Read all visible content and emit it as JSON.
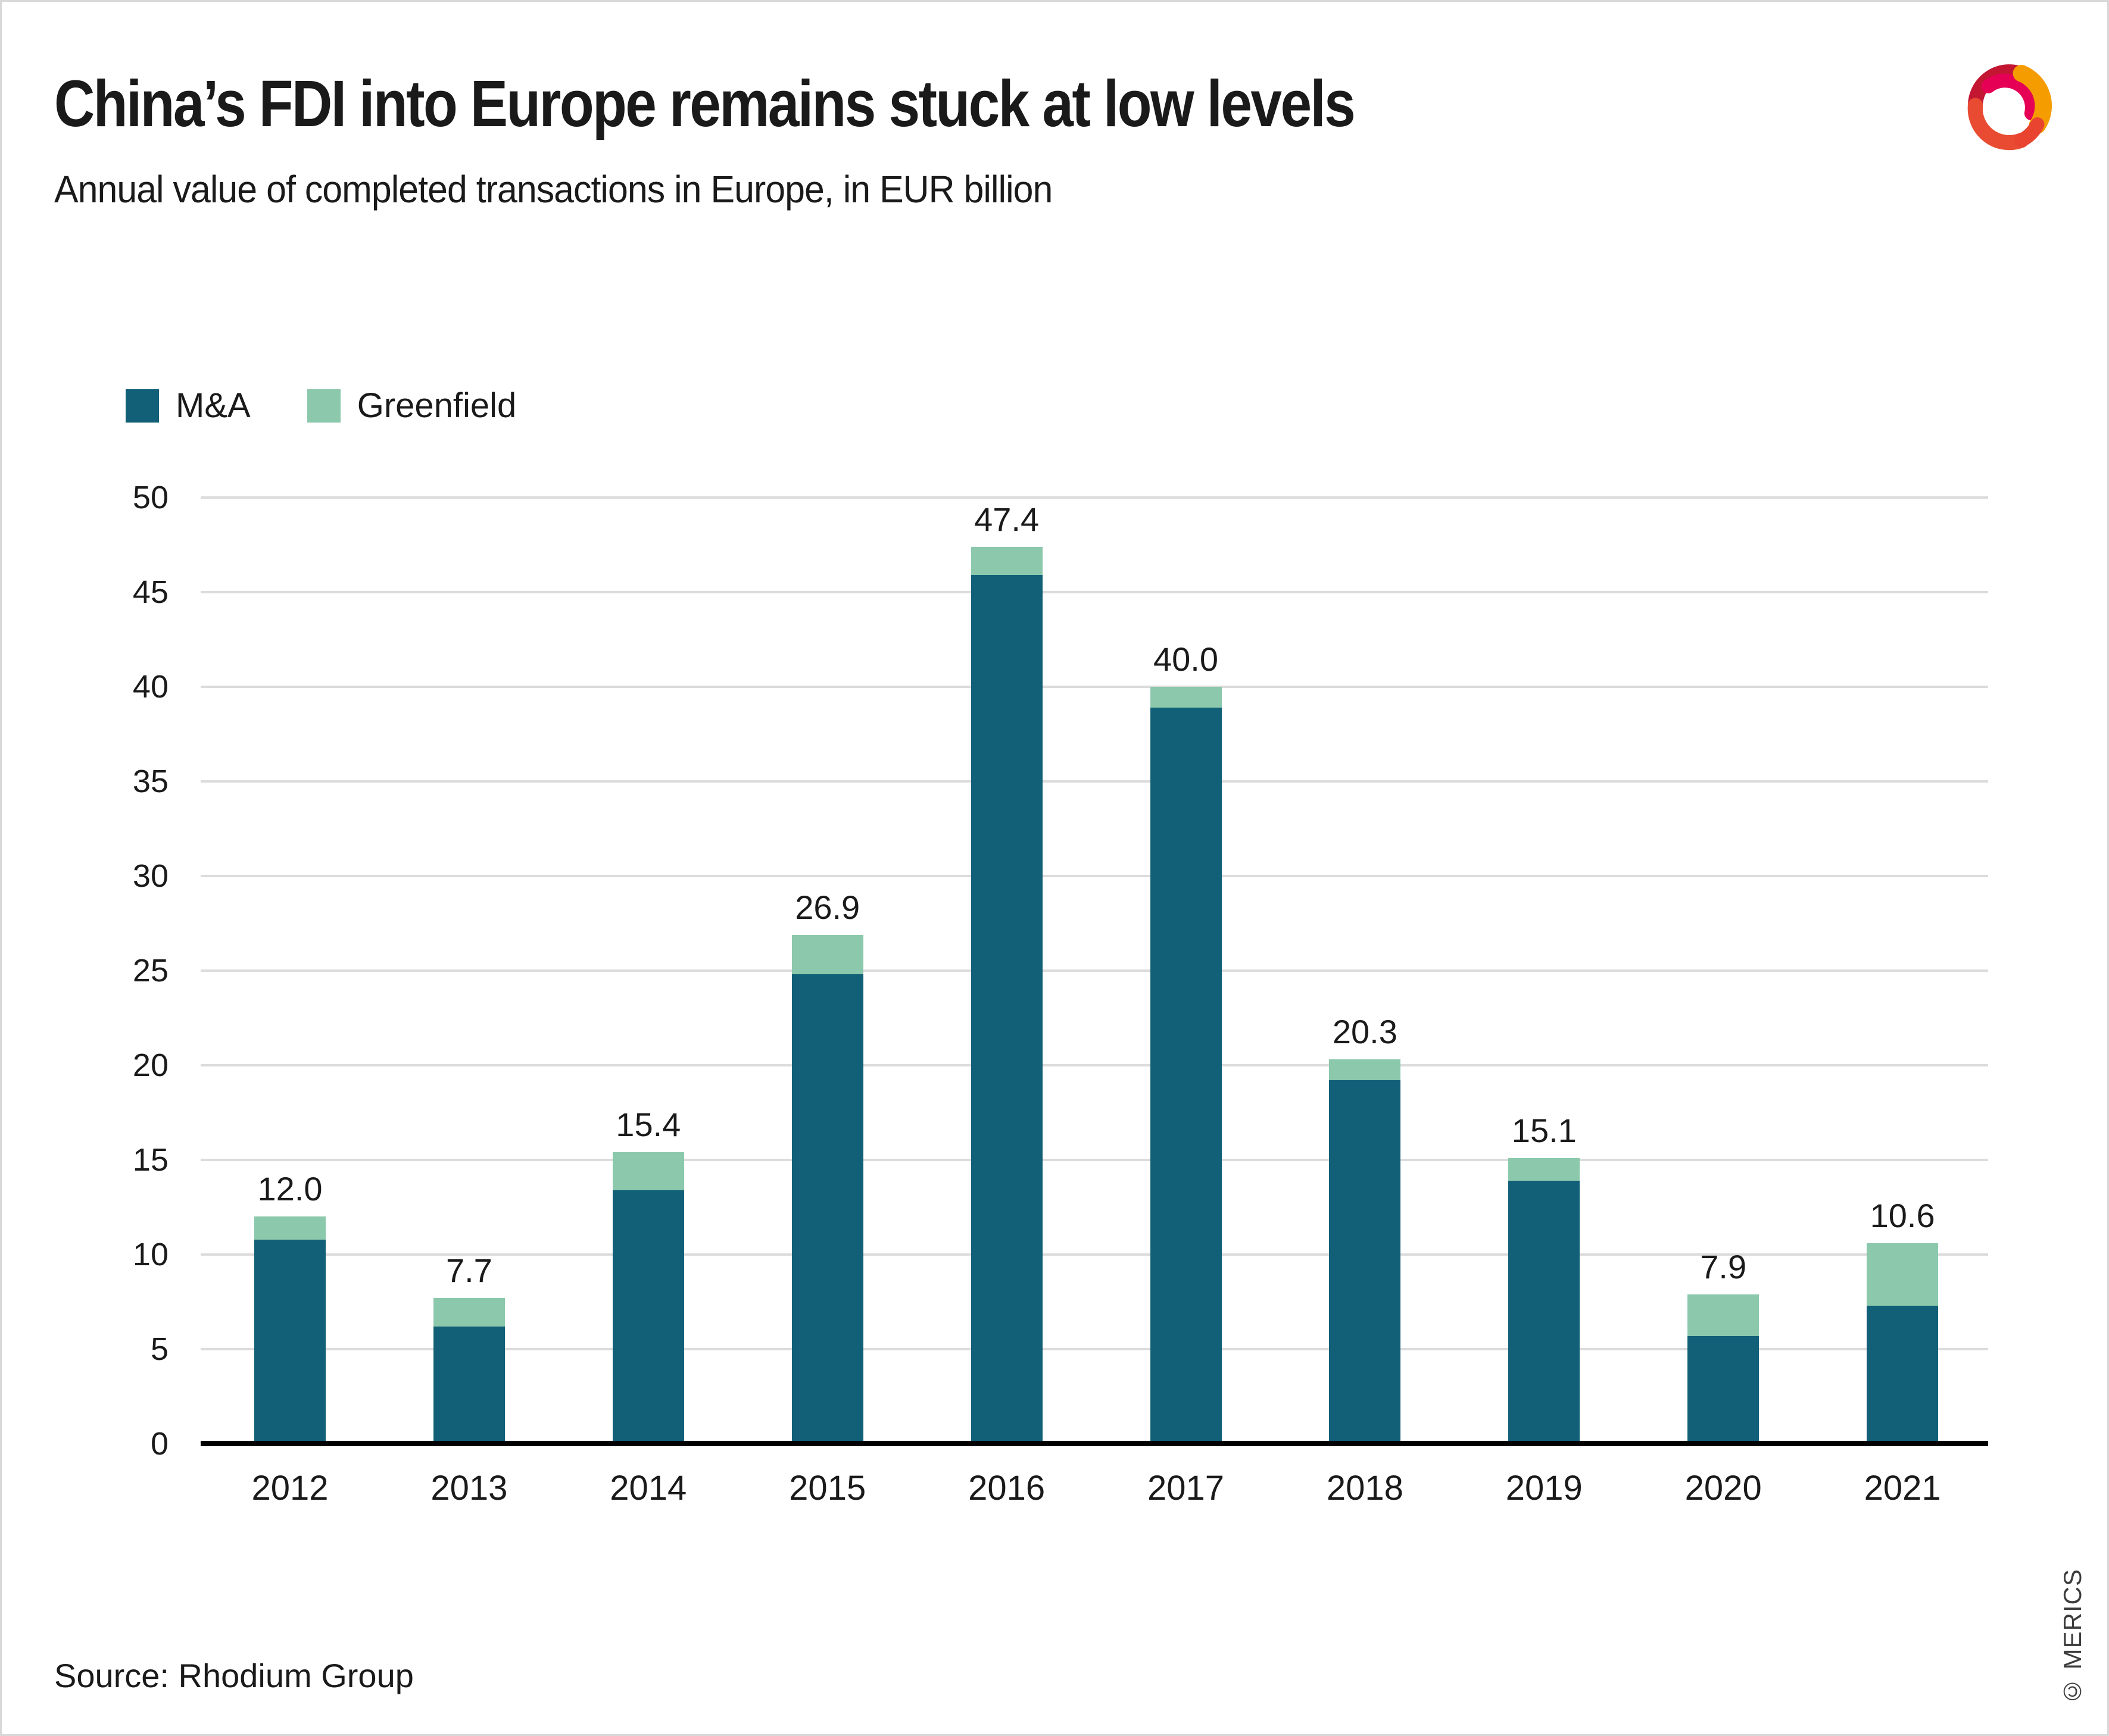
{
  "header": {
    "title": "China’s FDI into Europe remains stuck at low levels",
    "subtitle": "Annual value of completed transactions in Europe, in EUR billion"
  },
  "legend": {
    "items": [
      {
        "label": "M&A",
        "color": "#116078"
      },
      {
        "label": "Greenfield",
        "color": "#8bc8ac"
      }
    ]
  },
  "chart_data": {
    "type": "bar",
    "stacked": true,
    "title": "China’s FDI into Europe remains stuck at low levels",
    "subtitle": "Annual value of completed transactions in Europe, in EUR billion",
    "xlabel": "",
    "ylabel": "EUR billion",
    "ylim": [
      0,
      50
    ],
    "ytick_step": 5,
    "ytick_labels": [
      "0",
      "5",
      "10",
      "15",
      "20",
      "25",
      "30",
      "35",
      "40",
      "45",
      "50"
    ],
    "grid": "horizontal",
    "legend_position": "top-left",
    "categories": [
      "2012",
      "2013",
      "2014",
      "2015",
      "2016",
      "2017",
      "2018",
      "2019",
      "2020",
      "2021"
    ],
    "series": [
      {
        "name": "M&A",
        "color": "#116078",
        "values": [
          10.8,
          6.2,
          13.4,
          24.8,
          45.9,
          38.9,
          19.2,
          13.9,
          5.7,
          7.3
        ]
      },
      {
        "name": "Greenfield",
        "color": "#8bc8ac",
        "values": [
          1.2,
          1.5,
          2.0,
          2.1,
          1.5,
          1.1,
          1.1,
          1.2,
          2.2,
          3.3
        ]
      }
    ],
    "totals": [
      12.0,
      7.7,
      15.4,
      26.9,
      47.4,
      40.0,
      20.3,
      15.1,
      7.9,
      10.6
    ],
    "total_labels": [
      "12.0",
      "7.7",
      "15.4",
      "26.9",
      "47.4",
      "40.0",
      "20.3",
      "15.1",
      "7.9",
      "10.6"
    ]
  },
  "colors": {
    "gridline": "#dcdcdc",
    "axis": "#000000",
    "text": "#1a1a1a"
  },
  "footer": {
    "source": "Source: Rhodium Group",
    "copyright": "© MERICS"
  },
  "logo": {
    "name": "merics-logo"
  }
}
